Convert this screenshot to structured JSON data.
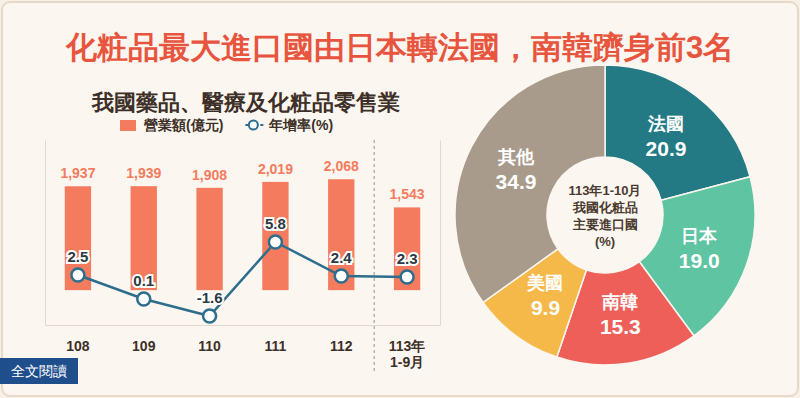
{
  "page": {
    "title": "化粧品最大進口國由日本轉法國，南韓躋身前3名",
    "link": "全文閱讀"
  },
  "chart_data": [
    {
      "type": "bar",
      "title": "我國藥品、醫療及化粧品零售業",
      "categories": [
        "108",
        "109",
        "110",
        "111",
        "112",
        "113年\n1-9月"
      ],
      "series": [
        {
          "name": "營業額(億元)",
          "type": "bar",
          "color": "#f47b5e",
          "values": [
            1937,
            1939,
            1908,
            2019,
            2068,
            1543
          ],
          "value_labels": [
            "1,937",
            "1,939",
            "1,908",
            "2,019",
            "2,068",
            "1,543"
          ]
        },
        {
          "name": "年增率(%)",
          "type": "line",
          "axis": "y2",
          "color": "#2d6e8e",
          "marker": "circle",
          "values": [
            2.5,
            0.1,
            -1.6,
            5.8,
            2.4,
            2.3
          ]
        }
      ],
      "ylim": [
        -650,
        2800
      ],
      "y2lim": [
        -2.5,
        16
      ],
      "data_labels": true,
      "tick_labels": "x",
      "legend": "top"
    },
    {
      "type": "pie",
      "title": "113年1-10月\n我國化粧品\n主要進口國\n(%)",
      "categories": [
        "法國",
        "日本",
        "南韓",
        "美國",
        "其他"
      ],
      "values": [
        20.9,
        19.0,
        15.3,
        9.9,
        34.9
      ],
      "value_labels": [
        "20.9",
        "19.0",
        "15.3",
        "9.9",
        "34.9"
      ],
      "colors": [
        "#237a85",
        "#5fc4a2",
        "#ef5f5a",
        "#f5b94a",
        "#a99b8b"
      ],
      "data_labels": true
    }
  ]
}
